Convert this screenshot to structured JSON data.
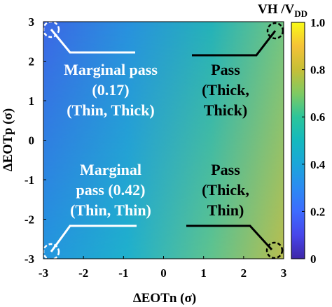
{
  "chart_data": {
    "type": "heatmap",
    "xlabel": "ΔEOTn (σ)",
    "ylabel": "ΔEOTp (σ)",
    "xlim": [
      -3,
      3
    ],
    "ylim": [
      -3,
      3
    ],
    "x_ticks": [
      "-3",
      "-2",
      "-1",
      "0",
      "1",
      "2",
      "3"
    ],
    "y_ticks": [
      "3",
      "2",
      "1",
      "0",
      "-1",
      "-2",
      "-3"
    ],
    "colorbar": {
      "label_main": "VH /V",
      "label_sub": "DD",
      "range": [
        0,
        1.0
      ],
      "ticks": [
        "1.0",
        "0.8",
        "0.6",
        "0.4",
        "0.2",
        "0"
      ],
      "colormap": "parula"
    },
    "corner_values": [
      {
        "x": -3,
        "y": 3,
        "value": 0.17
      },
      {
        "x": 3,
        "y": 3,
        "value": 0.72
      },
      {
        "x": -3,
        "y": -3,
        "value": 0.42
      },
      {
        "x": 3,
        "y": -3,
        "value": 0.85
      }
    ],
    "annotations": [
      {
        "lines": [
          "Marginal pass",
          "(0.17)",
          "(Thin, Thick)"
        ],
        "color": "#ffffff",
        "corner": "top-left"
      },
      {
        "lines": [
          "Pass",
          "(Thick,",
          "Thick)"
        ],
        "color": "#000000",
        "corner": "top-right"
      },
      {
        "lines": [
          "Marginal",
          "pass (0.42)",
          "(Thin, Thin)"
        ],
        "color": "#ffffff",
        "corner": "bottom-left"
      },
      {
        "lines": [
          "Pass",
          "(Thick,",
          "Thin)"
        ],
        "color": "#000000",
        "corner": "bottom-right"
      }
    ]
  }
}
